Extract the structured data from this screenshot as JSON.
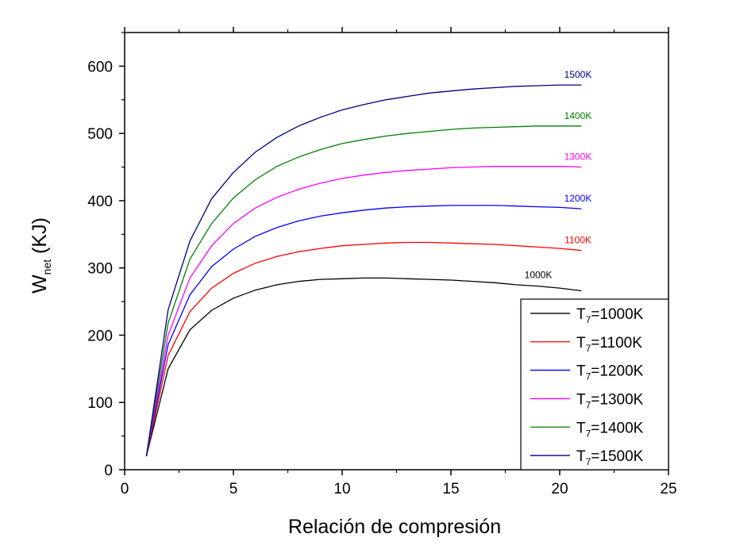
{
  "chart_data": {
    "type": "line",
    "title": "",
    "xlabel": "Relación de compresión",
    "ylabel_main": "W",
    "ylabel_sub": "net",
    "ylabel_unit": " (KJ)",
    "xlim": [
      0,
      25
    ],
    "ylim": [
      0,
      650
    ],
    "xticks": [
      0,
      5,
      10,
      15,
      20,
      25
    ],
    "yticks": [
      0,
      100,
      200,
      300,
      400,
      500,
      600
    ],
    "xtick_labels": [
      "0",
      "5",
      "10",
      "15",
      "20",
      "25"
    ],
    "ytick_labels": [
      "0",
      "100",
      "200",
      "300",
      "400",
      "500",
      "600"
    ],
    "grid": false,
    "legend_position": "bottom-right",
    "x": [
      1,
      2,
      3,
      4,
      5,
      6,
      7,
      8,
      9,
      10,
      11,
      12,
      13,
      14,
      15,
      16,
      17,
      18,
      19,
      20,
      21
    ],
    "series": [
      {
        "legend_main": "T",
        "legend_sub": "7",
        "legend_rest": "=1000K",
        "annotation": "1000K",
        "color": "#000000",
        "values": [
          20,
          150,
          208,
          237,
          255,
          267,
          275,
          280,
          283,
          284,
          285,
          285,
          284,
          283,
          282,
          280,
          278,
          275,
          273,
          270,
          266
        ]
      },
      {
        "legend_main": "T",
        "legend_sub": "7",
        "legend_rest": "=1100K",
        "annotation": "1100K",
        "color": "#ff0000",
        "values": [
          20,
          170,
          235,
          270,
          292,
          307,
          317,
          324,
          329,
          333,
          335,
          337,
          338,
          338,
          337,
          336,
          335,
          333,
          331,
          329,
          326
        ]
      },
      {
        "legend_main": "T",
        "legend_sub": "7",
        "legend_rest": "=1200K",
        "annotation": "1200K",
        "color": "#0000ff",
        "values": [
          20,
          186,
          260,
          302,
          328,
          347,
          360,
          370,
          377,
          382,
          386,
          389,
          391,
          392,
          393,
          393,
          393,
          392,
          391,
          390,
          388
        ]
      },
      {
        "legend_main": "T",
        "legend_sub": "7",
        "legend_rest": "=1300K",
        "annotation": "1300K",
        "color": "#ff00ff",
        "values": [
          20,
          200,
          285,
          333,
          366,
          389,
          405,
          417,
          426,
          433,
          438,
          442,
          445,
          447,
          449,
          450,
          451,
          451,
          451,
          451,
          450
        ]
      },
      {
        "legend_main": "T",
        "legend_sub": "7",
        "legend_rest": "=1400K",
        "annotation": "1400K",
        "color": "#008000",
        "values": [
          20,
          218,
          313,
          366,
          404,
          431,
          451,
          465,
          476,
          485,
          491,
          496,
          500,
          503,
          506,
          508,
          509,
          510,
          511,
          511,
          511
        ]
      },
      {
        "legend_main": "T",
        "legend_sub": "7",
        "legend_rest": "=1500K",
        "annotation": "1500K",
        "color": "#000080",
        "values": [
          20,
          238,
          340,
          403,
          442,
          472,
          494,
          511,
          524,
          535,
          543,
          550,
          555,
          560,
          563,
          566,
          568,
          570,
          571,
          572,
          572
        ]
      }
    ]
  }
}
